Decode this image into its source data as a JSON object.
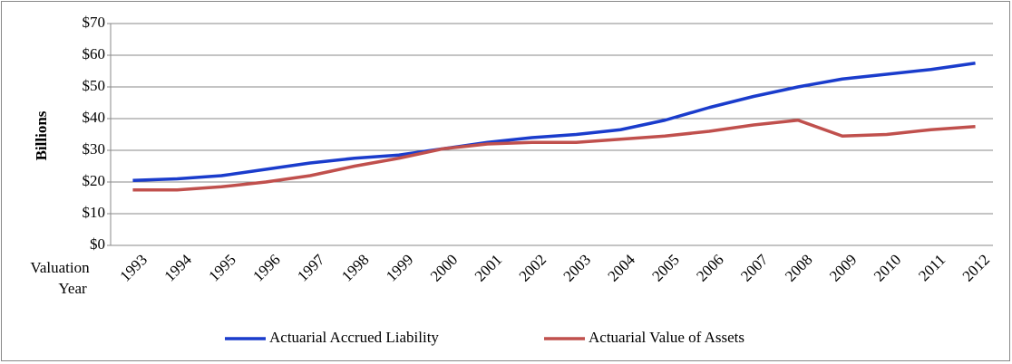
{
  "chart_data": {
    "type": "line",
    "ylabel": "Billions",
    "xlabel_lines": [
      "Valuation",
      "Year"
    ],
    "categories": [
      "1993",
      "1994",
      "1995",
      "1996",
      "1997",
      "1998",
      "1999",
      "2000",
      "2001",
      "2002",
      "2003",
      "2004",
      "2005",
      "2006",
      "2007",
      "2008",
      "2009",
      "2010",
      "2011",
      "2012"
    ],
    "series": [
      {
        "name": "Actuarial Accrued Liability",
        "color": "#1a3ccc",
        "values": [
          20.5,
          21,
          22,
          24,
          26,
          27.5,
          28.5,
          30.5,
          32.5,
          34,
          35,
          36.5,
          39.5,
          43.5,
          47,
          50,
          52.5,
          54,
          55.5,
          57.5
        ]
      },
      {
        "name": "Actuarial Value of Assets",
        "color": "#c0504d",
        "values": [
          17.5,
          17.5,
          18.5,
          20,
          22,
          25,
          27.5,
          30.5,
          32,
          32.5,
          32.5,
          33.5,
          34.5,
          36,
          38,
          39.5,
          34.5,
          35,
          36.5,
          37.5
        ]
      }
    ],
    "ylim": [
      0,
      70
    ],
    "yticks": [
      {
        "value": 0,
        "label": "$0"
      },
      {
        "value": 10,
        "label": "$10"
      },
      {
        "value": 20,
        "label": "$20"
      },
      {
        "value": 30,
        "label": "$30"
      },
      {
        "value": 40,
        "label": "$40"
      },
      {
        "value": 50,
        "label": "$50"
      },
      {
        "value": 60,
        "label": "$60"
      },
      {
        "value": 70,
        "label": "$70"
      }
    ],
    "grid": true,
    "legend": "bottom"
  }
}
